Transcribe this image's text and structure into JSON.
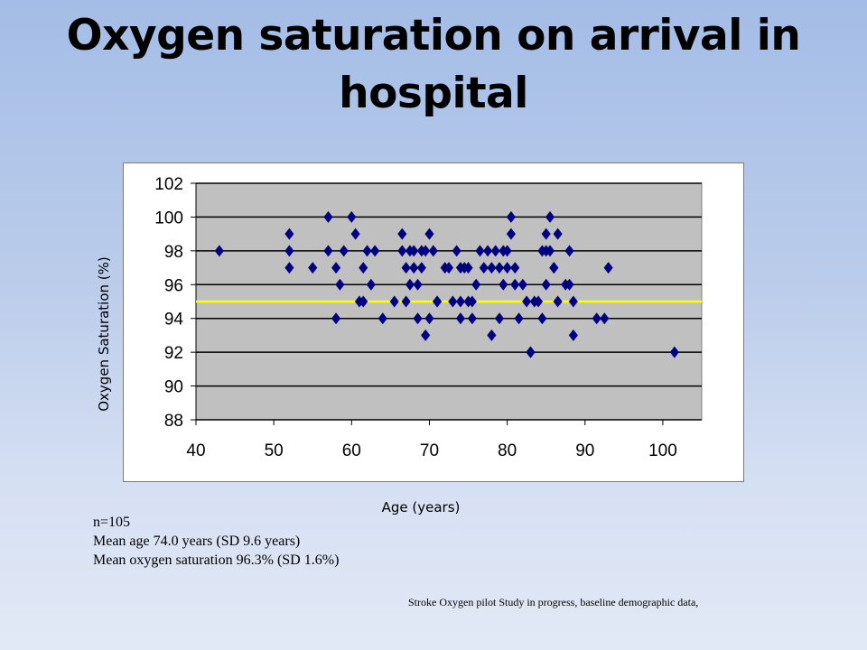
{
  "slide": {
    "title": "Oxygen saturation on arrival in hospital",
    "stats": [
      "n=105",
      "Mean age 74.0 years (SD 9.6 years)",
      "Mean oxygen saturation 96.3% (SD 1.6%)"
    ],
    "source": "Stroke Oxygen pilot Study in progress, baseline demographic data,"
  },
  "chart_data": {
    "type": "scatter",
    "title": "",
    "xlabel": "Age (years)",
    "ylabel": "Oxygen Saturation (%)",
    "xlim": [
      40,
      105
    ],
    "ylim": [
      88,
      102
    ],
    "xticks": [
      40,
      50,
      60,
      70,
      80,
      90,
      100
    ],
    "yticks": [
      88,
      90,
      92,
      94,
      96,
      98,
      100,
      102
    ],
    "grid": "horizontal",
    "plot_background": "#c0c0c0",
    "marker": "diamond",
    "marker_color": "#000080",
    "reference_line": {
      "y": 95,
      "color": "#ffff00"
    },
    "series": [
      {
        "points": [
          [
            43,
            98
          ],
          [
            52,
            99
          ],
          [
            52,
            98
          ],
          [
            52,
            97
          ],
          [
            55,
            97
          ],
          [
            57,
            100
          ],
          [
            57,
            98
          ],
          [
            58,
            97
          ],
          [
            58,
            94
          ],
          [
            58.5,
            96
          ],
          [
            59,
            98
          ],
          [
            60,
            100
          ],
          [
            60.5,
            99
          ],
          [
            61,
            95
          ],
          [
            61.5,
            95
          ],
          [
            61.5,
            97
          ],
          [
            62,
            98
          ],
          [
            62.5,
            96
          ],
          [
            63,
            98
          ],
          [
            64,
            94
          ],
          [
            65.5,
            95
          ],
          [
            66.5,
            99
          ],
          [
            66.5,
            98
          ],
          [
            67,
            95
          ],
          [
            67,
            97
          ],
          [
            67.5,
            96
          ],
          [
            67.5,
            98
          ],
          [
            68,
            98
          ],
          [
            68,
            97
          ],
          [
            68.5,
            96
          ],
          [
            68.5,
            94
          ],
          [
            69,
            97
          ],
          [
            69,
            98
          ],
          [
            69.5,
            93
          ],
          [
            69.5,
            98
          ],
          [
            70,
            99
          ],
          [
            70,
            94
          ],
          [
            70.5,
            98
          ],
          [
            71,
            95
          ],
          [
            71,
            95
          ],
          [
            72,
            97
          ],
          [
            72.5,
            97
          ],
          [
            73,
            95
          ],
          [
            73.5,
            98
          ],
          [
            74,
            95
          ],
          [
            74,
            97
          ],
          [
            74,
            94
          ],
          [
            74.5,
            97
          ],
          [
            75,
            95
          ],
          [
            75,
            97
          ],
          [
            75.5,
            95
          ],
          [
            75.5,
            94
          ],
          [
            76,
            96
          ],
          [
            76.5,
            98
          ],
          [
            77,
            97
          ],
          [
            77.5,
            98
          ],
          [
            78,
            97
          ],
          [
            78,
            93
          ],
          [
            78.5,
            98
          ],
          [
            79,
            94
          ],
          [
            79,
            97
          ],
          [
            79.5,
            96
          ],
          [
            79.5,
            98
          ],
          [
            80,
            98
          ],
          [
            80,
            97
          ],
          [
            80.5,
            100
          ],
          [
            80.5,
            99
          ],
          [
            81,
            97
          ],
          [
            81,
            96
          ],
          [
            81.5,
            94
          ],
          [
            82,
            96
          ],
          [
            82.5,
            95
          ],
          [
            83,
            92
          ],
          [
            83,
            92
          ],
          [
            83.5,
            95
          ],
          [
            84,
            95
          ],
          [
            84.5,
            94
          ],
          [
            84.5,
            98
          ],
          [
            85,
            99
          ],
          [
            85,
            98
          ],
          [
            85,
            96
          ],
          [
            85.5,
            100
          ],
          [
            85.5,
            98
          ],
          [
            86,
            97
          ],
          [
            86,
            97
          ],
          [
            86.5,
            95
          ],
          [
            86.5,
            99
          ],
          [
            87.5,
            96
          ],
          [
            88,
            98
          ],
          [
            88,
            96
          ],
          [
            88.5,
            95
          ],
          [
            88.5,
            93
          ],
          [
            91.5,
            94
          ],
          [
            92.5,
            94
          ],
          [
            93,
            97
          ],
          [
            101.5,
            92
          ]
        ]
      }
    ]
  }
}
